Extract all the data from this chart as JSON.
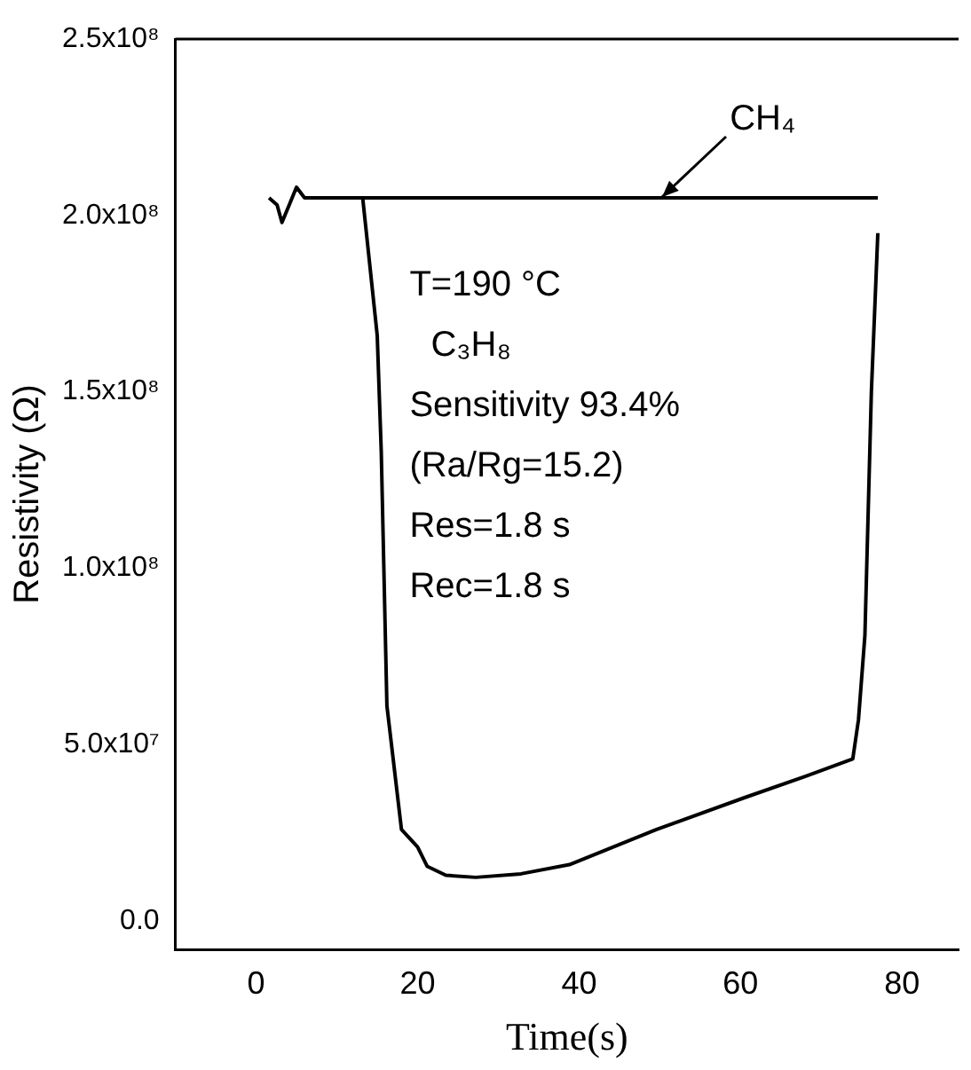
{
  "chart_data": {
    "type": "line",
    "xlabel": "Time(s)",
    "ylabel": "Resistivity (Ω)",
    "xlim": [
      -10,
      87
    ],
    "xticks": [
      0,
      20,
      40,
      60,
      80
    ],
    "ylim": [
      -8000000,
      250000000
    ],
    "yticks": [
      {
        "value": 0,
        "label": "0.0"
      },
      {
        "value": 50000000,
        "label": "5.0x10⁷"
      },
      {
        "value": 100000000,
        "label": "1.0x10⁸"
      },
      {
        "value": 150000000,
        "label": "1.5x10⁸"
      },
      {
        "value": 200000000,
        "label": "2.0x10⁸"
      },
      {
        "value": 250000000,
        "label": "2.5x10⁸"
      }
    ],
    "series": [
      {
        "color": "#000000",
        "x": [
          1.6,
          2.6,
          3.2,
          4.1,
          5.0,
          6.0,
          8.0,
          10.0,
          12.7,
          13.2,
          15.0,
          15.5,
          16.2,
          18.0,
          20.0,
          21.2,
          23.5,
          27.2,
          32.8,
          38.8,
          49.6,
          60.5,
          68.0,
          73.9,
          74.6,
          75.4,
          76.2,
          77.0
        ],
        "values": [
          205000000,
          203000000,
          198000000,
          203000000,
          208000000,
          205000000,
          205000000,
          205000000,
          205000000,
          205000000,
          166000000,
          133000000,
          61000000,
          26000000,
          21000000,
          15500000,
          13000000,
          12400000,
          13400000,
          16000000,
          26000000,
          35000000,
          41000000,
          46000000,
          57000000,
          81000000,
          150000000,
          195000000
        ]
      },
      {
        "color": "#000000",
        "x": [
          12.7,
          77.0
        ],
        "values": [
          205000000,
          205000000
        ]
      }
    ],
    "annotations": [
      {
        "text": "CH₄",
        "x": 50.3,
        "y": 205000000
      },
      "T=190 °C",
      "C₃H₈",
      "Sensitivity 93.4%",
      "(Ra/Rg=15.2)",
      "Res=1.8 s",
      "Rec=1.8 s"
    ],
    "grid": false,
    "legend": false,
    "marker": "none",
    "line_style": "solid"
  }
}
